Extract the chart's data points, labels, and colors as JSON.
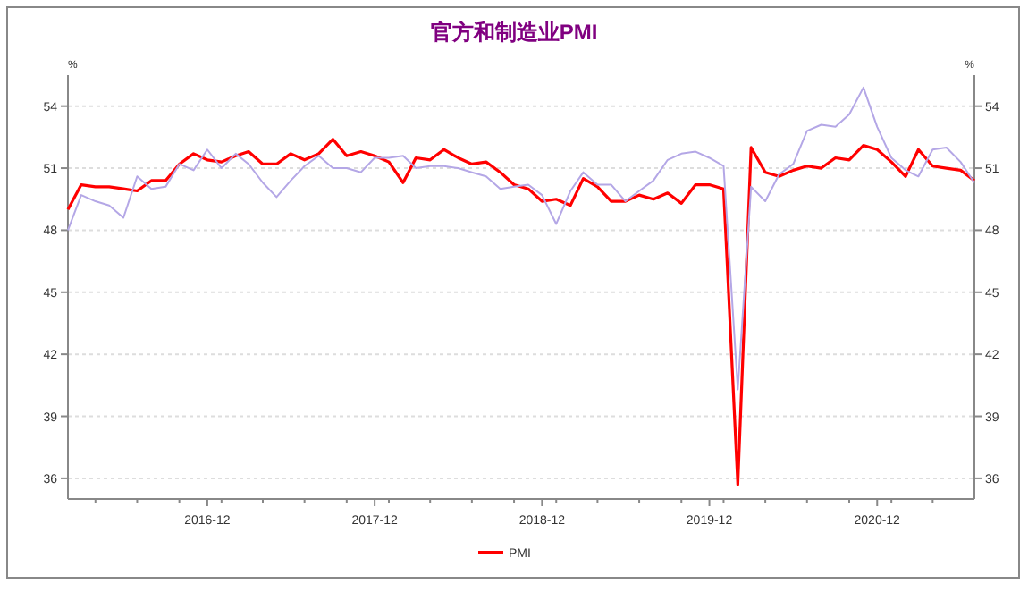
{
  "chart_data": {
    "type": "line",
    "title": "官方和制造业PMI",
    "ylabel": "%",
    "y2label": "%",
    "x": [
      "2016-02",
      "2016-03",
      "2016-04",
      "2016-05",
      "2016-06",
      "2016-07",
      "2016-08",
      "2016-09",
      "2016-10",
      "2016-11",
      "2016-12",
      "2017-01",
      "2017-02",
      "2017-03",
      "2017-04",
      "2017-05",
      "2017-06",
      "2017-07",
      "2017-08",
      "2017-09",
      "2017-10",
      "2017-11",
      "2017-12",
      "2018-01",
      "2018-02",
      "2018-03",
      "2018-04",
      "2018-05",
      "2018-06",
      "2018-07",
      "2018-08",
      "2018-09",
      "2018-10",
      "2018-11",
      "2018-12",
      "2019-01",
      "2019-02",
      "2019-03",
      "2019-04",
      "2019-05",
      "2019-06",
      "2019-07",
      "2019-08",
      "2019-09",
      "2019-10",
      "2019-11",
      "2019-12",
      "2020-01",
      "2020-02",
      "2020-03",
      "2020-04",
      "2020-05",
      "2020-06",
      "2020-07",
      "2020-08",
      "2020-09",
      "2020-10",
      "2020-11",
      "2020-12",
      "2021-01",
      "2021-02",
      "2021-03",
      "2021-04",
      "2021-05",
      "2021-06",
      "2021-07"
    ],
    "series": [
      {
        "name": "PMI",
        "color": "#ff0000",
        "values": [
          49.0,
          50.2,
          50.1,
          50.1,
          50.0,
          49.9,
          50.4,
          50.4,
          51.2,
          51.7,
          51.4,
          51.3,
          51.6,
          51.8,
          51.2,
          51.2,
          51.7,
          51.4,
          51.7,
          52.4,
          51.6,
          51.8,
          51.6,
          51.3,
          50.3,
          51.5,
          51.4,
          51.9,
          51.5,
          51.2,
          51.3,
          50.8,
          50.2,
          50.0,
          49.4,
          49.5,
          49.2,
          50.5,
          50.1,
          49.4,
          49.4,
          49.7,
          49.5,
          49.8,
          49.3,
          50.2,
          50.2,
          50.0,
          35.7,
          52.0,
          50.8,
          50.6,
          50.9,
          51.1,
          51.0,
          51.5,
          51.4,
          52.1,
          51.9,
          51.3,
          50.6,
          51.9,
          51.1,
          51.0,
          50.9,
          50.4
        ]
      },
      {
        "color": "#b4a7e6",
        "values": [
          48.0,
          49.7,
          49.4,
          49.2,
          48.6,
          50.6,
          50.0,
          50.1,
          51.2,
          50.9,
          51.9,
          51.0,
          51.7,
          51.2,
          50.3,
          49.6,
          50.4,
          51.1,
          51.6,
          51.0,
          51.0,
          50.8,
          51.5,
          51.5,
          51.6,
          51.0,
          51.1,
          51.1,
          51.0,
          50.8,
          50.6,
          50.0,
          50.1,
          50.2,
          49.7,
          48.3,
          49.9,
          50.8,
          50.2,
          50.2,
          49.4,
          49.9,
          50.4,
          51.4,
          51.7,
          51.8,
          51.5,
          51.1,
          40.3,
          50.1,
          49.4,
          50.7,
          51.2,
          52.8,
          53.1,
          53.0,
          53.6,
          54.9,
          53.0,
          51.5,
          50.9,
          50.6,
          51.9,
          52.0,
          51.3,
          50.3
        ]
      }
    ],
    "xlim": [
      "2016-02",
      "2021-07"
    ],
    "xticks": [
      {
        "value": "2016-12",
        "label": "2016-12"
      },
      {
        "value": "2017-12",
        "label": "2017-12"
      },
      {
        "value": "2018-12",
        "label": "2018-12"
      },
      {
        "value": "2019-12",
        "label": "2019-12"
      },
      {
        "value": "2020-12",
        "label": "2020-12"
      }
    ],
    "ylim": [
      35,
      55.5
    ],
    "yticks": [
      36,
      39,
      42,
      45,
      48,
      51,
      54
    ],
    "y2lim": [
      35,
      55.5
    ],
    "y2ticks": [
      36,
      39,
      42,
      45,
      48,
      51,
      54
    ],
    "grid": "y",
    "legend": "bottom",
    "line_style": "solid"
  }
}
